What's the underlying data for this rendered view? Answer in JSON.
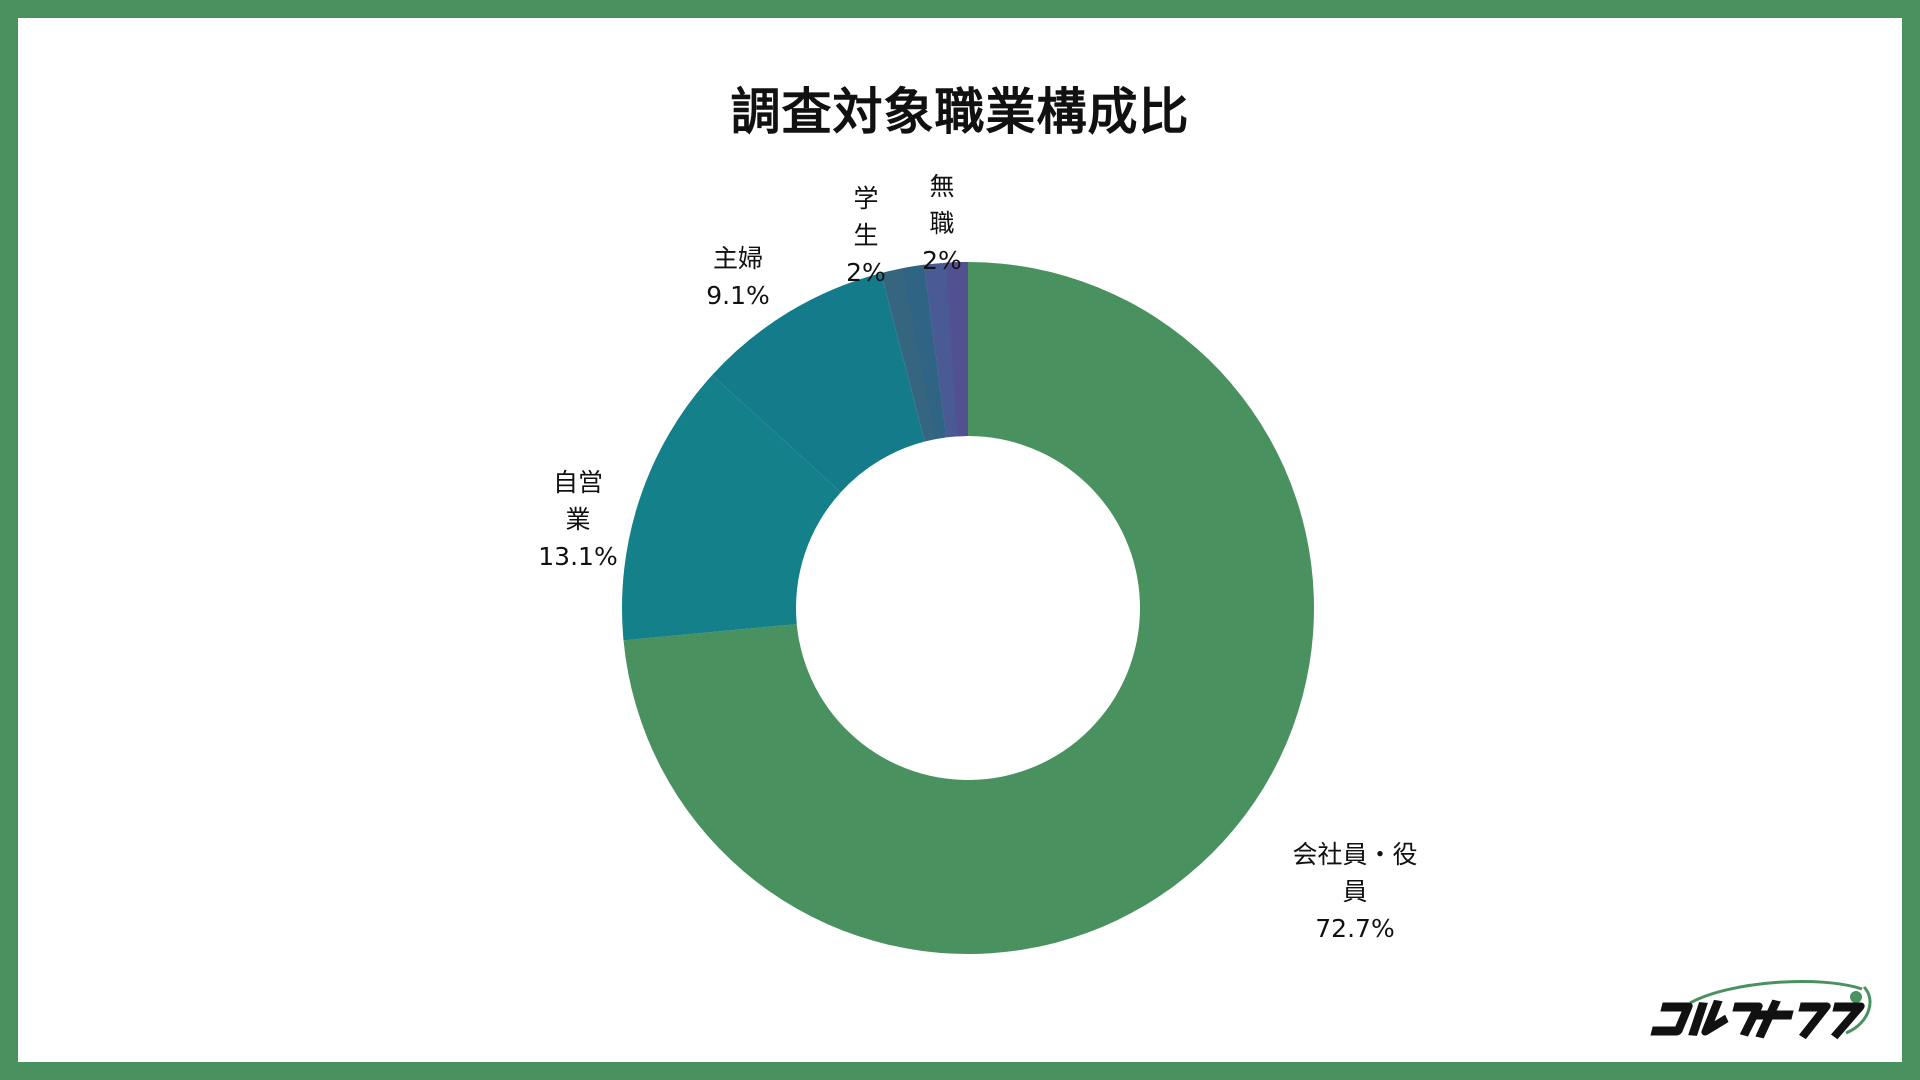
{
  "chart_data": {
    "type": "pie",
    "subtype": "donut",
    "title": "調査対象職業構成比",
    "slices": [
      {
        "label_lines": [
          "会社員・役",
          "員"
        ],
        "value": 72.7,
        "value_label": "72.7%",
        "color": "#4a9160"
      },
      {
        "label_lines": [
          "自営",
          "業"
        ],
        "value": 13.1,
        "value_label": "13.1%",
        "color": "#13808a"
      },
      {
        "label_lines": [
          "主婦"
        ],
        "value": 9.1,
        "value_label": "9.1%",
        "color": "#137b8a"
      },
      {
        "label_lines": [
          "学",
          "生"
        ],
        "value": 2,
        "value_label": "2%",
        "color": "#36657f"
      },
      {
        "label_lines": [
          "無",
          "職"
        ],
        "value": 2,
        "value_label": "2%",
        "color": "#4a5a95"
      }
    ],
    "extra_slice_colors": [
      "#2f6484",
      "#515192"
    ]
  },
  "logo": {
    "text": "ゴルフオタク",
    "color": "#111111",
    "accent": "#4a9160"
  },
  "colors": {
    "border": "#4a9160",
    "background": "#ffffff"
  }
}
